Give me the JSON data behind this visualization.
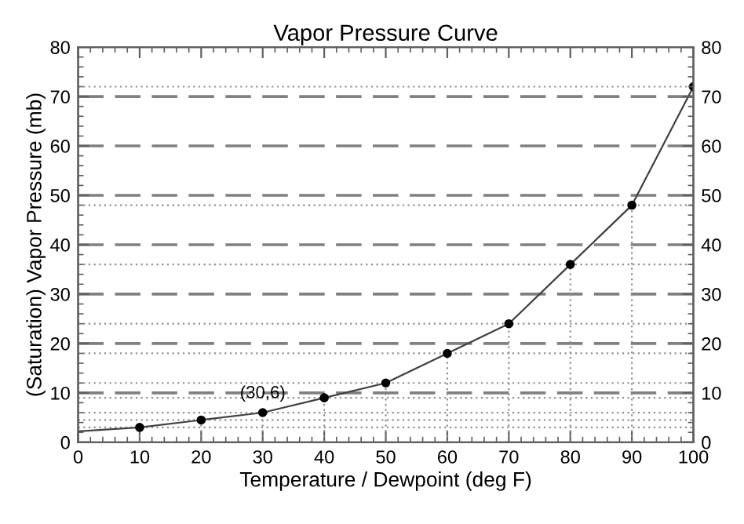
{
  "chart_data": {
    "type": "line",
    "title": "Vapor Pressure Curve",
    "xlabel": "Temperature / Dewpoint (deg F)",
    "ylabel": "(Saturation) Vapor Pressure (mb)",
    "series": [
      {
        "color": "#404040",
        "marker": "none",
        "x": [
          0,
          10,
          20,
          30,
          40,
          50,
          60,
          70,
          80,
          90,
          100
        ],
        "values": [
          2.2,
          3,
          4.5,
          6,
          9,
          12,
          18,
          24,
          36,
          48,
          72
        ]
      },
      {
        "type": "lollipop",
        "color": "#000000",
        "marker": "circle",
        "x": [
          10,
          20,
          30,
          40,
          50,
          60,
          70,
          80,
          90,
          100
        ],
        "values": [
          3,
          4.5,
          6,
          9,
          12,
          18,
          24,
          36,
          48,
          72
        ]
      }
    ],
    "annotations": [
      {
        "text": "(30,6)",
        "x": 30,
        "y": 6
      }
    ],
    "xlim": [
      0,
      100
    ],
    "xticks": [
      0,
      10,
      20,
      30,
      40,
      50,
      60,
      70,
      80,
      90,
      100
    ],
    "ylim": [
      0,
      80
    ],
    "yticks": [
      0,
      10,
      20,
      30,
      40,
      50,
      60,
      70,
      80
    ],
    "y2lim": [
      0,
      80
    ],
    "y2ticks": [
      0,
      10,
      20,
      30,
      40,
      50,
      60,
      70,
      80
    ],
    "ref_lines": [
      {
        "axis": "y",
        "value": 3,
        "color": "#909090",
        "line_style": "dotted"
      },
      {
        "axis": "y",
        "value": 4.5,
        "color": "#909090",
        "line_style": "dotted"
      },
      {
        "axis": "y",
        "value": 6,
        "color": "#909090",
        "line_style": "dotted"
      },
      {
        "axis": "y",
        "value": 9,
        "color": "#909090",
        "line_style": "dotted"
      },
      {
        "axis": "y",
        "value": 12,
        "color": "#909090",
        "line_style": "dotted"
      },
      {
        "axis": "y",
        "value": 18,
        "color": "#909090",
        "line_style": "dotted"
      },
      {
        "axis": "y",
        "value": 24,
        "color": "#909090",
        "line_style": "dotted"
      },
      {
        "axis": "y",
        "value": 36,
        "color": "#909090",
        "line_style": "dotted"
      },
      {
        "axis": "y",
        "value": 48,
        "color": "#909090",
        "line_style": "dotted"
      },
      {
        "axis": "y",
        "value": 72,
        "color": "#909090",
        "line_style": "dotted"
      }
    ],
    "grid": "y",
    "legend": false
  }
}
